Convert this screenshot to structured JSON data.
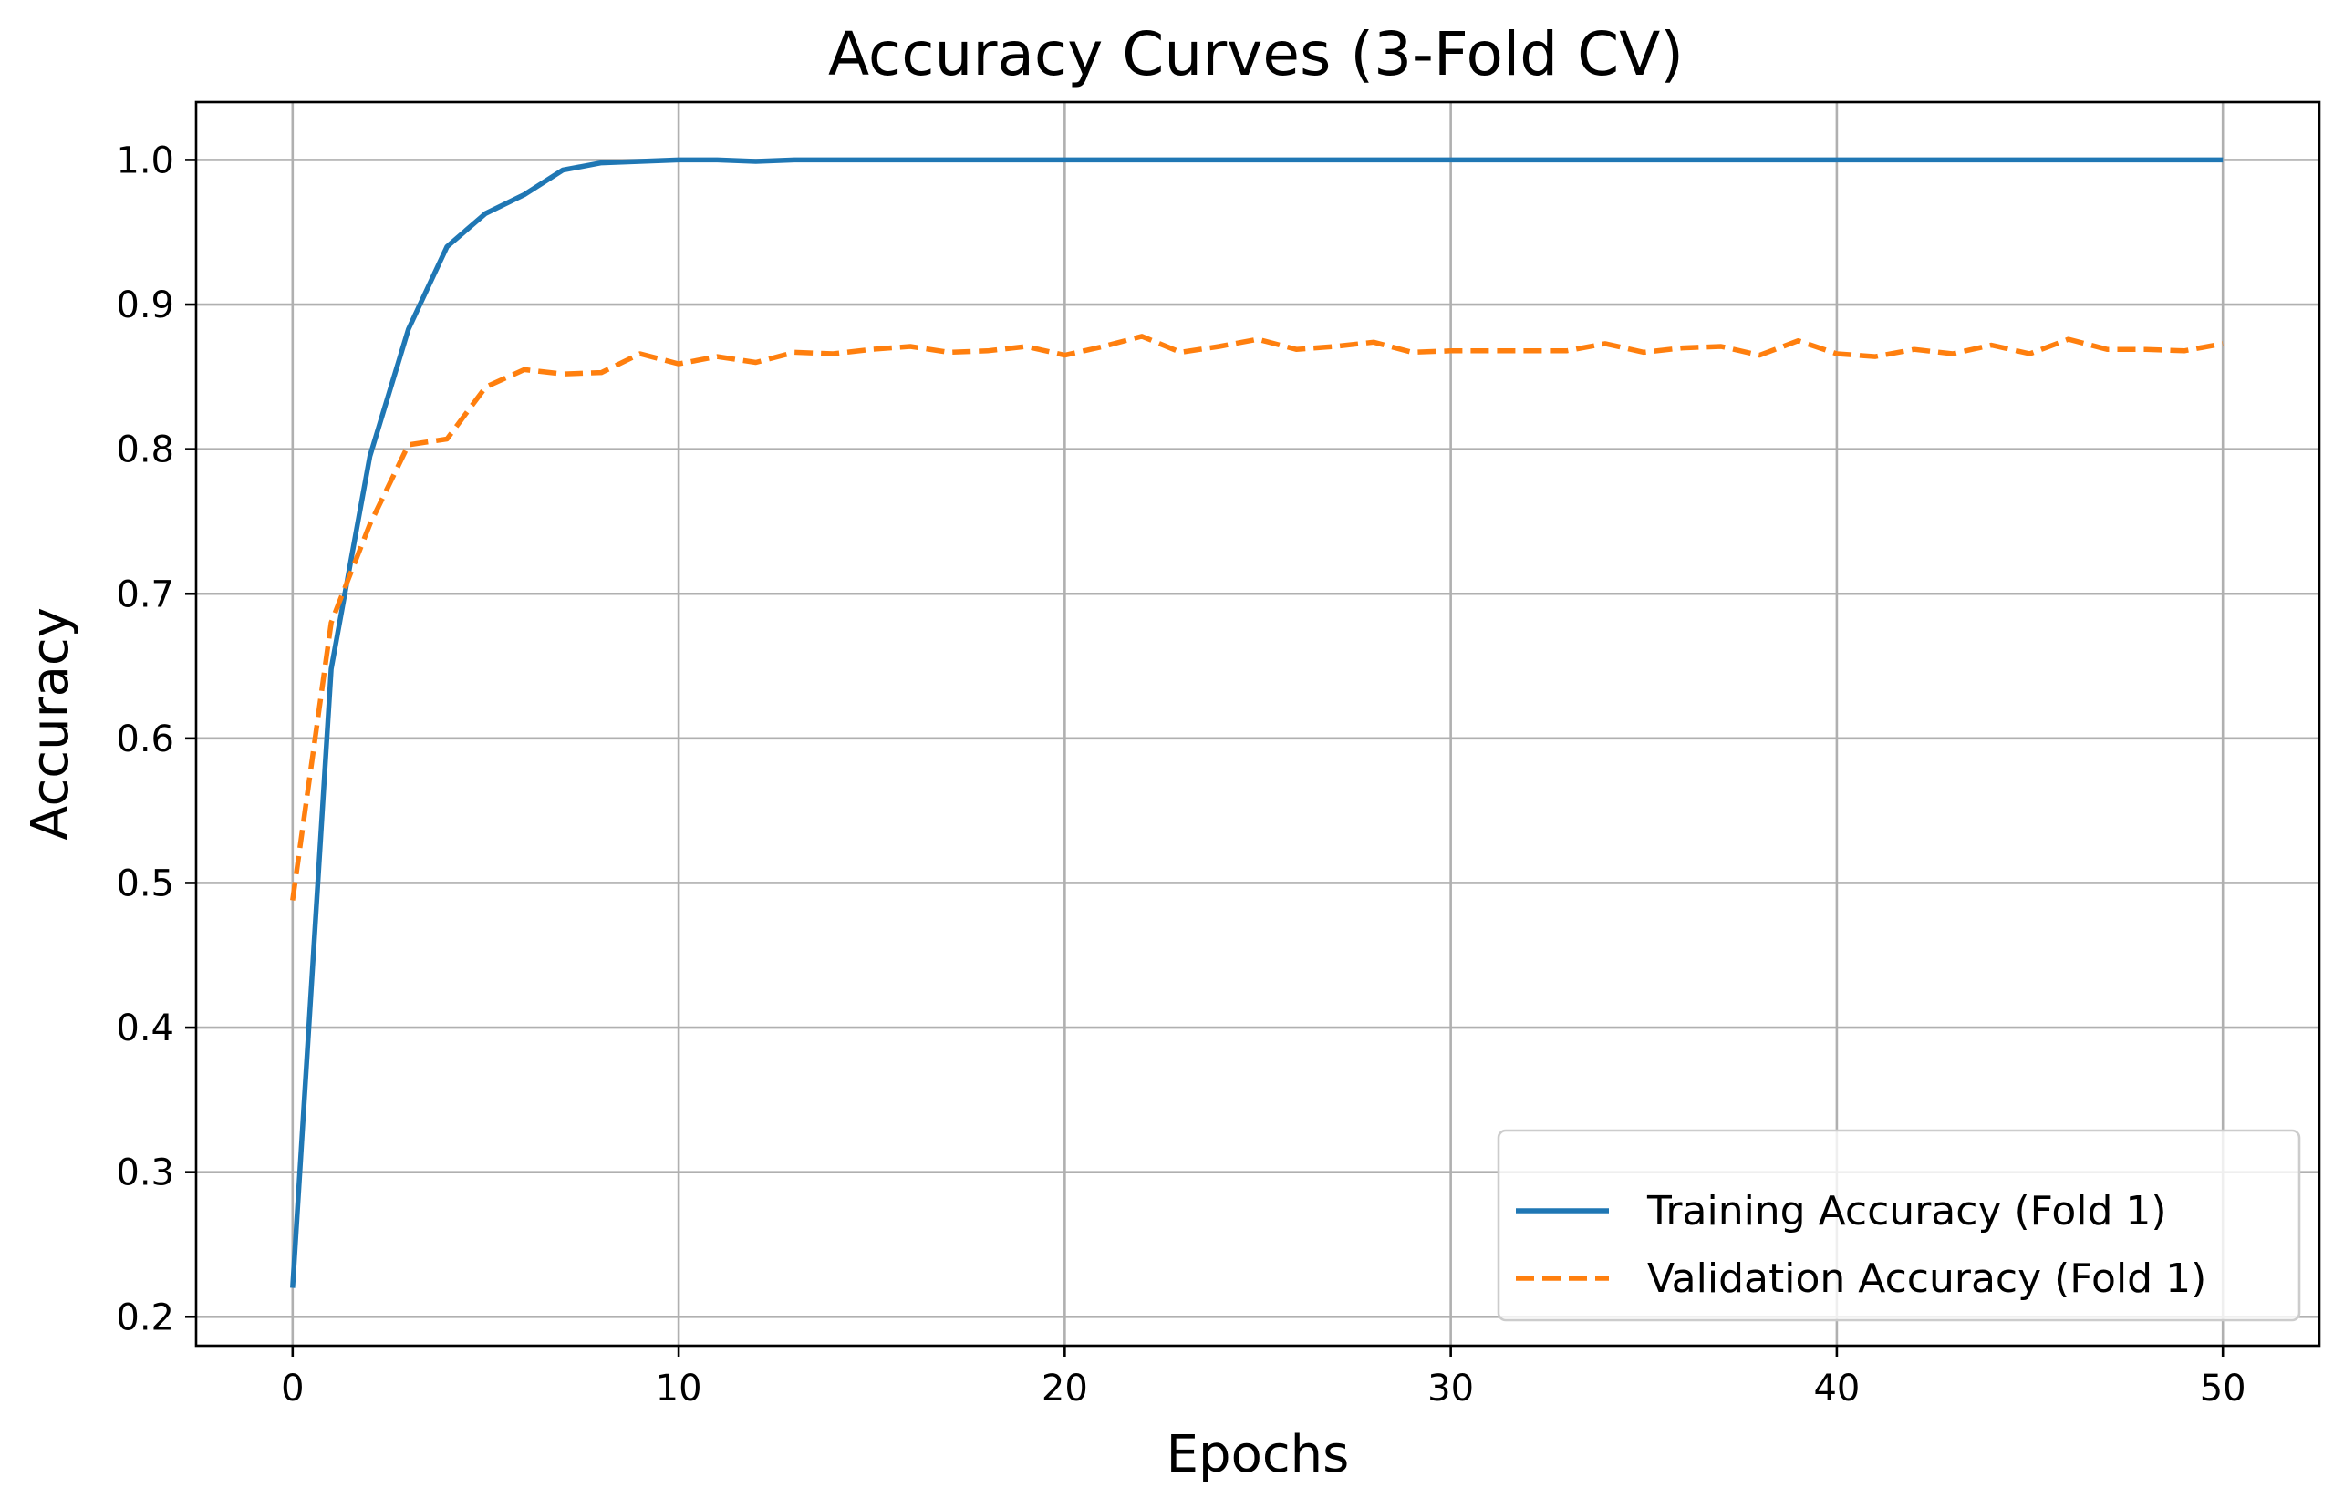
{
  "chart_data": {
    "type": "line",
    "title": "Accuracy Curves (3-Fold CV)",
    "xlabel": "Epochs",
    "ylabel": "Accuracy",
    "xlim": [
      -2.5,
      52.5
    ],
    "ylim": [
      0.18,
      1.04
    ],
    "xticks": [
      0,
      10,
      20,
      30,
      40,
      50
    ],
    "xtick_labels": [
      "0",
      "10",
      "20",
      "30",
      "40",
      "50"
    ],
    "yticks": [
      0.2,
      0.3,
      0.4,
      0.5,
      0.6,
      0.7,
      0.8,
      0.9,
      1.0
    ],
    "ytick_labels": [
      "0.2",
      "0.3",
      "0.4",
      "0.5",
      "0.6",
      "0.7",
      "0.8",
      "0.9",
      "1.0"
    ],
    "grid": true,
    "legend_position": "lower-right",
    "x": [
      0,
      1,
      2,
      3,
      4,
      5,
      6,
      7,
      8,
      9,
      10,
      11,
      12,
      13,
      14,
      15,
      16,
      17,
      18,
      19,
      20,
      21,
      22,
      23,
      24,
      25,
      26,
      27,
      28,
      29,
      30,
      31,
      32,
      33,
      34,
      35,
      36,
      37,
      38,
      39,
      40,
      41,
      42,
      43,
      44,
      45,
      46,
      47,
      48,
      49,
      50
    ],
    "series": [
      {
        "name": "Training Accuracy (Fold 1)",
        "color": "#1f77b4",
        "style": "solid",
        "values": [
          0.22,
          0.648,
          0.795,
          0.883,
          0.94,
          0.963,
          0.976,
          0.993,
          0.998,
          0.999,
          1.0,
          1.0,
          0.999,
          1.0,
          1.0,
          1.0,
          1.0,
          1.0,
          1.0,
          1.0,
          1.0,
          1.0,
          1.0,
          1.0,
          1.0,
          1.0,
          1.0,
          1.0,
          1.0,
          1.0,
          1.0,
          1.0,
          1.0,
          1.0,
          1.0,
          1.0,
          1.0,
          1.0,
          1.0,
          1.0,
          1.0,
          1.0,
          1.0,
          1.0,
          1.0,
          1.0,
          1.0,
          1.0,
          1.0,
          1.0,
          1.0
        ]
      },
      {
        "name": "Validation Accuracy (Fold 1)",
        "color": "#ff7f0e",
        "style": "dashed",
        "values": [
          0.488,
          0.68,
          0.748,
          0.803,
          0.807,
          0.843,
          0.855,
          0.852,
          0.853,
          0.866,
          0.859,
          0.864,
          0.86,
          0.867,
          0.866,
          0.869,
          0.871,
          0.867,
          0.868,
          0.871,
          0.865,
          0.871,
          0.878,
          0.867,
          0.871,
          0.876,
          0.869,
          0.871,
          0.874,
          0.867,
          0.868,
          0.868,
          0.868,
          0.868,
          0.873,
          0.867,
          0.87,
          0.871,
          0.865,
          0.875,
          0.866,
          0.864,
          0.869,
          0.866,
          0.872,
          0.866,
          0.876,
          0.869,
          0.869,
          0.868,
          0.873
        ]
      }
    ]
  }
}
